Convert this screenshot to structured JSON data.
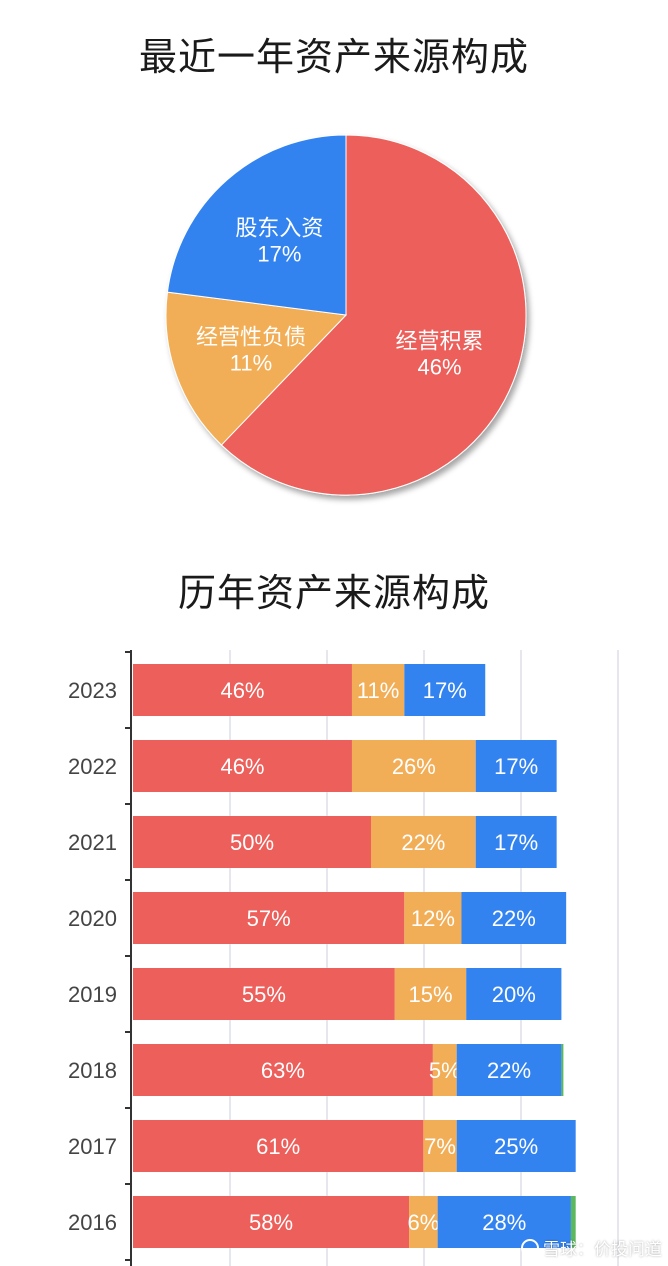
{
  "colors": {
    "red": "#EC5F5A",
    "orange": "#F2AE57",
    "blue": "#3283F0",
    "green": "#5CB85C"
  },
  "chart_data": [
    {
      "type": "pie",
      "title": "最近一年资产来源构成",
      "slices": [
        {
          "label": "经营积累",
          "percent_label": "46%",
          "value": 46,
          "color": "#EC5F5A"
        },
        {
          "label": "经营性负债",
          "percent_label": "11%",
          "value": 11,
          "color": "#F2AE57"
        },
        {
          "label": "股东入资",
          "percent_label": "17%",
          "value": 17,
          "color": "#3283F0"
        }
      ]
    },
    {
      "type": "bar",
      "orientation": "horizontal",
      "stacked": true,
      "title": "历年资产来源构成",
      "categories": [
        "2023",
        "2022",
        "2021",
        "2020",
        "2019",
        "2018",
        "2017",
        "2016"
      ],
      "series": [
        {
          "color": "#EC5F5A",
          "values": [
            46,
            46,
            50,
            57,
            55,
            63,
            61,
            58
          ]
        },
        {
          "color": "#F2AE57",
          "values": [
            11,
            26,
            22,
            12,
            15,
            5,
            7,
            6
          ]
        },
        {
          "color": "#3283F0",
          "values": [
            17,
            17,
            17,
            22,
            20,
            22,
            25,
            28
          ]
        },
        {
          "color": "#5CB85C",
          "values": [
            0,
            0,
            0,
            0,
            0,
            0.4,
            0,
            1
          ]
        }
      ],
      "grid": true
    }
  ],
  "watermark": {
    "text": "雪球：价投问道"
  }
}
